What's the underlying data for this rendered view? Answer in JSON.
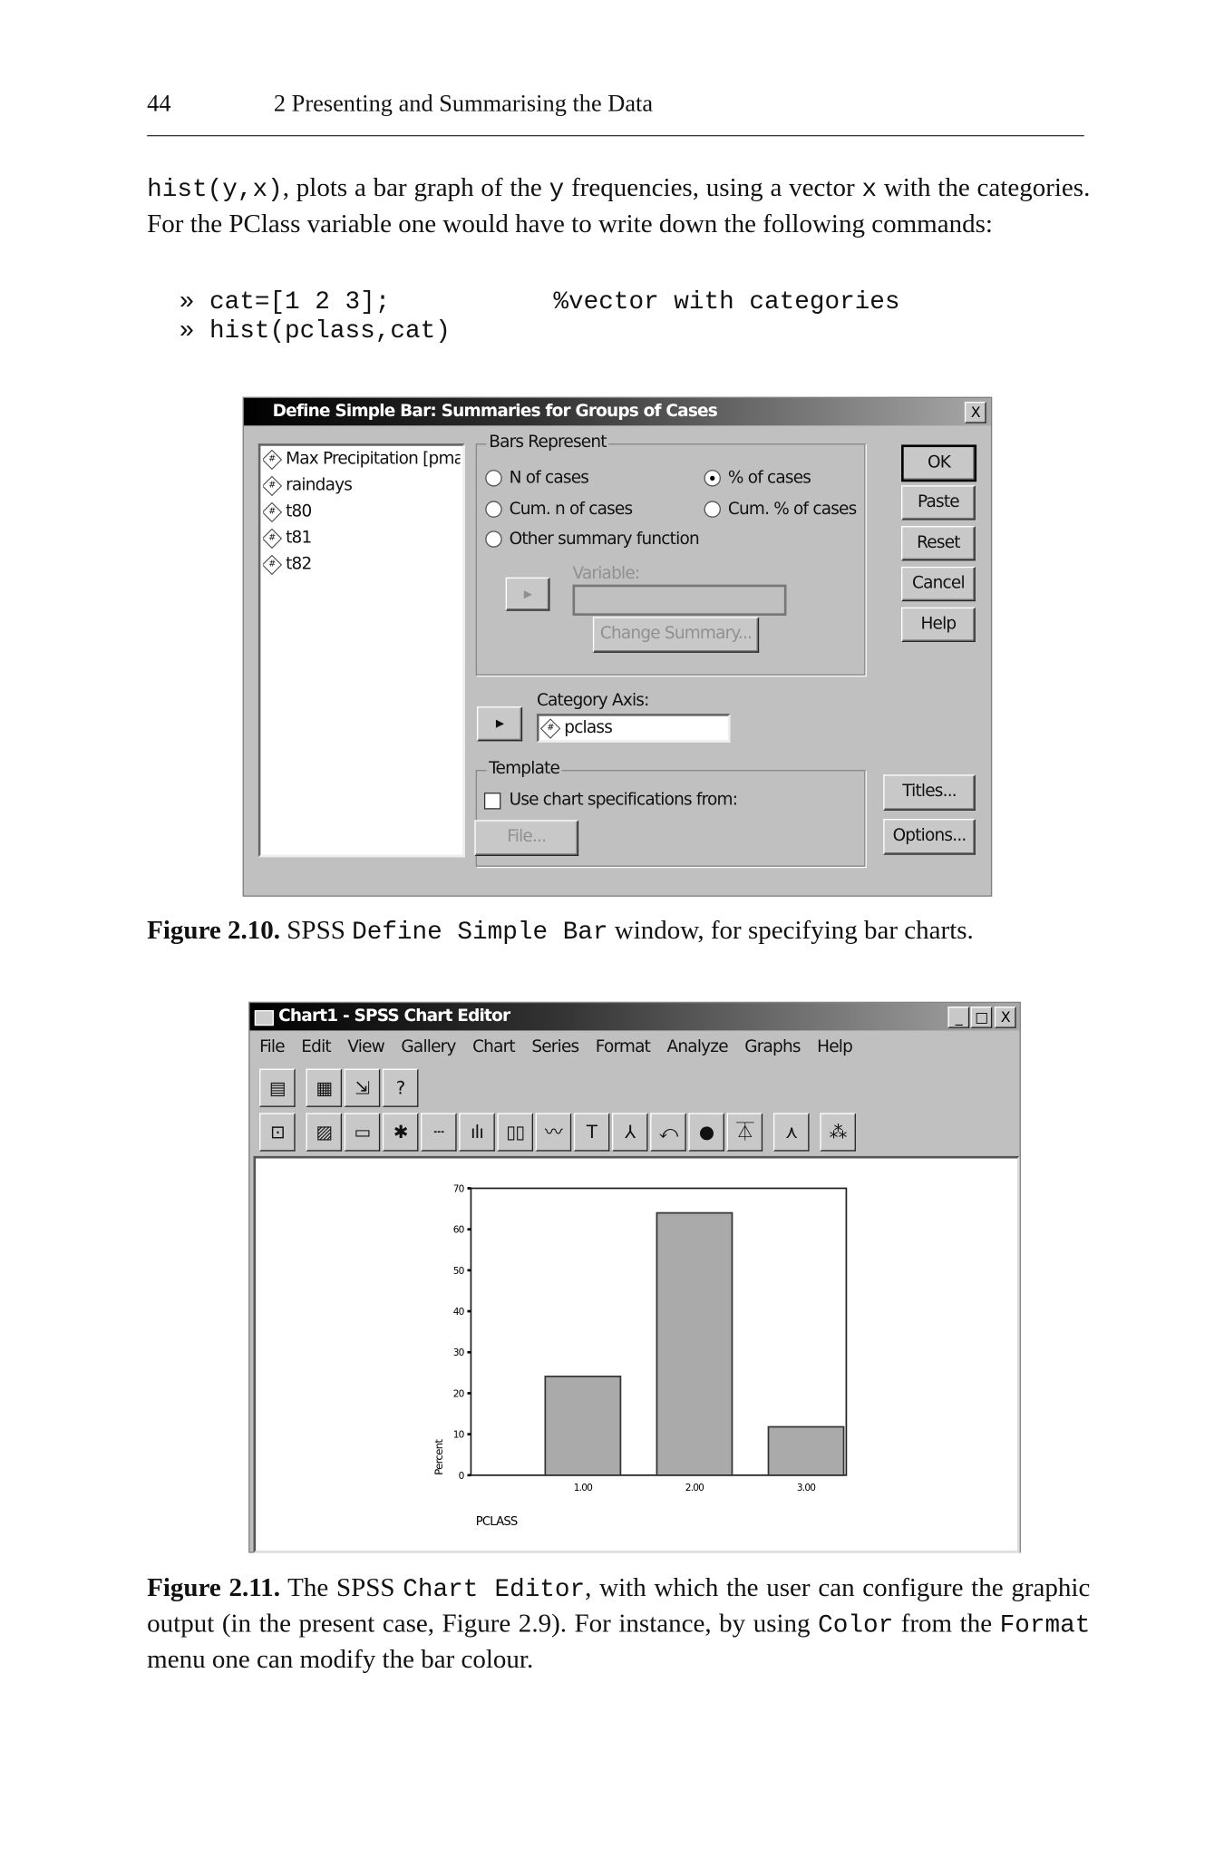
{
  "header": {
    "page_number": "44",
    "running_title": "2 Presenting and Summarising the Data"
  },
  "intro": {
    "code_inline": "hist(y,x)",
    "text1": ", plots a bar graph of the ",
    "code_y": "y",
    "text2": " frequencies, using a vector ",
    "code_x": "x",
    "text3": " with the categories. For the PClass variable one would have to write down the following commands:"
  },
  "code_block": {
    "line1": "» cat=[1 2 3];",
    "line1_comment": "%vector with categories",
    "line2": "» hist(pclass,cat)"
  },
  "dialog": {
    "title": "Define Simple Bar: Summaries for Groups of Cases",
    "close_label": "X",
    "variables": [
      "Max Precipitation [pmax",
      "raindays",
      "t80",
      "t81",
      "t82"
    ],
    "bars_represent": {
      "label": "Bars Represent",
      "options": [
        "N of cases",
        "% of cases",
        "Cum. n of cases",
        "Cum. % of cases",
        "Other summary function"
      ],
      "selected": "% of cases"
    },
    "variable_label": "Variable:",
    "change_summary": "Change Summary...",
    "category_axis_label": "Category Axis:",
    "category_axis_value": "pclass",
    "template": {
      "label": "Template",
      "checkbox_label": "Use chart specifications from:",
      "checked": false,
      "file_button": "File..."
    },
    "buttons": {
      "ok": "OK",
      "paste": "Paste",
      "reset": "Reset",
      "cancel": "Cancel",
      "help": "Help",
      "titles": "Titles...",
      "options": "Options..."
    }
  },
  "caption1": {
    "label": "Figure 2.10.",
    "t1": " SPSS ",
    "code": "Define Simple Bar",
    "t2": " window, for specifying bar charts."
  },
  "chart_editor": {
    "title": "Chart1 - SPSS Chart Editor",
    "window_buttons": [
      "_",
      "□",
      "X"
    ],
    "menu": [
      "File",
      "Edit",
      "View",
      "Gallery",
      "Chart",
      "Series",
      "Format",
      "Analyze",
      "Graphs",
      "Help"
    ],
    "toolbar1_icons": [
      "go-to-data-icon",
      "data-grid-icon",
      "go-to-case-icon",
      "select-icon"
    ],
    "toolbar2_icons": [
      "point-id-icon",
      "fill-pattern-icon",
      "color-icon",
      "marker-icon",
      "line-style-icon",
      "bar-style-icon",
      "bar-label-icon",
      "interpolation-icon",
      "text-icon",
      "3d-rotation-icon",
      "swap-axes-icon",
      "explode-slice-icon",
      "break-line-icon",
      "spin-icon",
      "cluster-icon"
    ]
  },
  "chart_data": {
    "type": "bar",
    "categories": [
      "1.00",
      "2.00",
      "3.00"
    ],
    "values": [
      24.1,
      64.0,
      11.8
    ],
    "xlabel": "PCLASS",
    "ylabel": "Percent",
    "ylim": [
      0,
      70
    ],
    "yticks": [
      "0",
      "10",
      "20",
      "30",
      "40",
      "50",
      "60",
      "70"
    ],
    "grid": false,
    "bar_color": "#aaaaaa"
  },
  "caption2": {
    "label": "Figure 2.11.",
    "t1": " The SPSS ",
    "code1": "Chart Editor",
    "t2": ", with which the user can configure the graphic output (in the present case, Figure 2.9). For instance, by using ",
    "code2": "Color",
    "t3": " from the ",
    "code3": "Format",
    "t4": " menu one can modify the bar colour."
  }
}
